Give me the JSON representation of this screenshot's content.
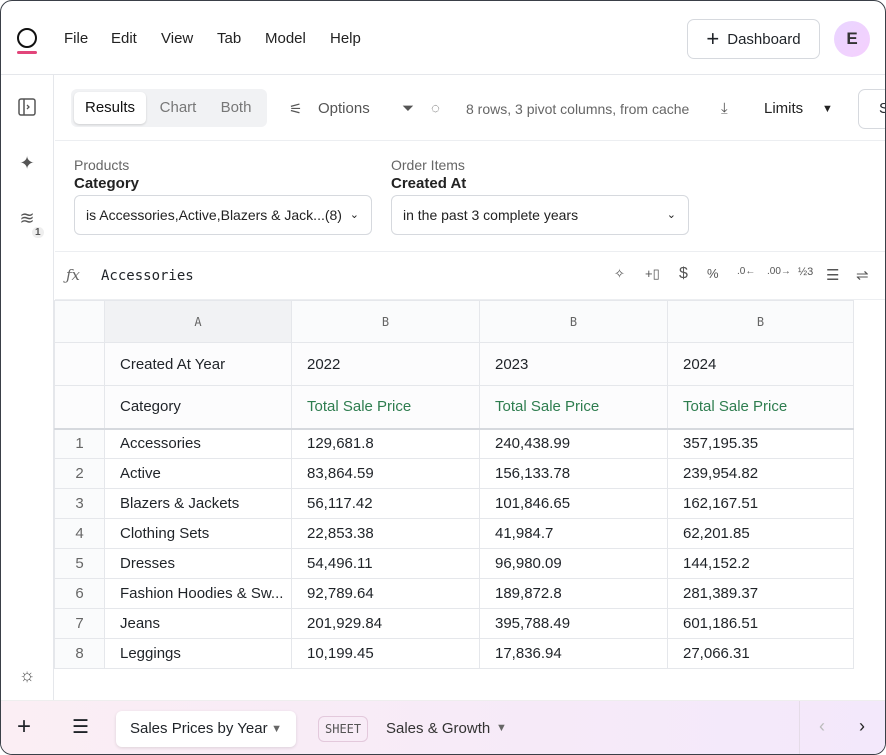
{
  "menu": [
    "File",
    "Edit",
    "View",
    "Tab",
    "Model",
    "Help"
  ],
  "header": {
    "dashboard_label": "Dashboard",
    "avatar_initial": "E"
  },
  "sidebar": {
    "badge": "1"
  },
  "toolbar": {
    "views": [
      "Results",
      "Chart",
      "Both"
    ],
    "options_label": "Options",
    "status": "8 rows, 3 pivot columns, from cache",
    "limits_label": "Limits",
    "cut_button": "S"
  },
  "filters": [
    {
      "source": "Products",
      "field": "Category",
      "value": "is Accessories,Active,Blazers & Jack...(8)"
    },
    {
      "source": "Order Items",
      "field": "Created At",
      "value": "in the past 3 complete years"
    }
  ],
  "formula": {
    "value": "Accessories"
  },
  "grid": {
    "col_letters": [
      "A",
      "B",
      "B",
      "B"
    ],
    "pivot_label": "Created At Year",
    "years": [
      "2022",
      "2023",
      "2024"
    ],
    "row_label": "Category",
    "measure": "Total Sale Price",
    "rows": [
      {
        "n": "1",
        "cat": "Accessories",
        "v": [
          "129,681.8",
          "240,438.99",
          "357,195.35"
        ]
      },
      {
        "n": "2",
        "cat": "Active",
        "v": [
          "83,864.59",
          "156,133.78",
          "239,954.82"
        ]
      },
      {
        "n": "3",
        "cat": "Blazers & Jackets",
        "v": [
          "56,117.42",
          "101,846.65",
          "162,167.51"
        ]
      },
      {
        "n": "4",
        "cat": "Clothing Sets",
        "v": [
          "22,853.38",
          "41,984.7",
          "62,201.85"
        ]
      },
      {
        "n": "5",
        "cat": "Dresses",
        "v": [
          "54,496.11",
          "96,980.09",
          "144,152.2"
        ]
      },
      {
        "n": "6",
        "cat": "Fashion Hoodies & Sw...",
        "v": [
          "92,789.64",
          "189,872.8",
          "281,389.37"
        ]
      },
      {
        "n": "7",
        "cat": "Jeans",
        "v": [
          "201,929.84",
          "395,788.49",
          "601,186.51"
        ]
      },
      {
        "n": "8",
        "cat": "Leggings",
        "v": [
          "10,199.45",
          "17,836.94",
          "27,066.31"
        ]
      }
    ]
  },
  "bottom": {
    "active_tab": "Sales Prices by Year",
    "sheet_badge": "SHEET",
    "sheet_tab": "Sales & Growth"
  }
}
